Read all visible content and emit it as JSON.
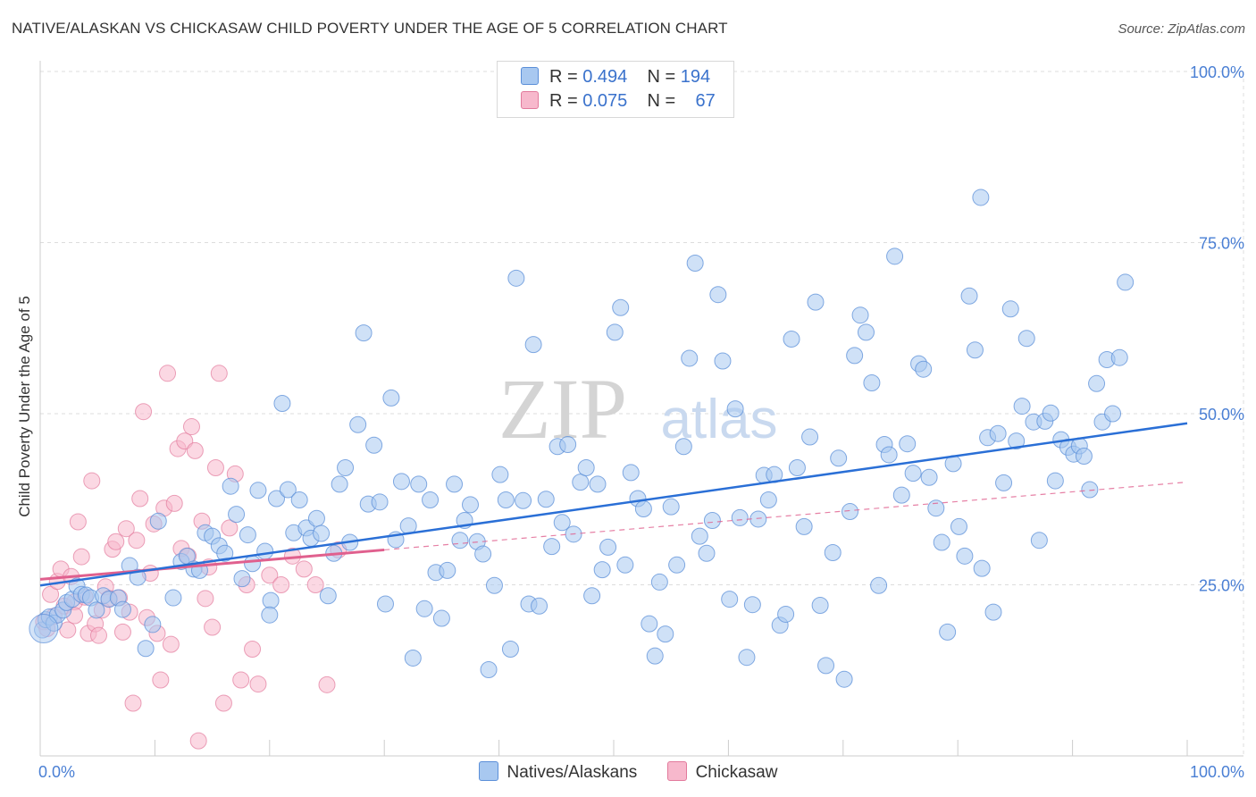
{
  "title": "NATIVE/ALASKAN VS CHICKASAW CHILD POVERTY UNDER THE AGE OF 5 CORRELATION CHART",
  "source": "Source: ZipAtlas.com",
  "watermark": {
    "zip": "ZIP",
    "atlas": "atlas"
  },
  "legend": {
    "rows": [
      {
        "r_label": "R =",
        "r_value": "0.494",
        "n_label": "N =",
        "n_value": "194"
      },
      {
        "r_label": "R =",
        "r_value": "0.075",
        "n_label": "N =",
        "n_value": "67"
      }
    ]
  },
  "bottom_legend": {
    "series1": "Natives/Alaskans",
    "series2": "Chickasaw"
  },
  "colors": {
    "blue_fill": "#a8c8f0",
    "blue_stroke": "#5b8fd8",
    "blue_line": "#2a6fd6",
    "pink_fill": "#f7b8cc",
    "pink_stroke": "#e27a9c",
    "pink_line": "#e0608e",
    "tick_text": "#4a7fd4",
    "grid": "#dddddd"
  },
  "chart_data": {
    "type": "scatter",
    "title": "NATIVE/ALASKAN VS CHICKASAW CHILD POVERTY UNDER THE AGE OF 5 CORRELATION CHART",
    "xlabel": "",
    "ylabel": "Child Poverty Under the Age of 5",
    "xlim": [
      0,
      100
    ],
    "ylim": [
      0,
      100
    ],
    "x_tick_labels": [
      "0.0%",
      "100.0%"
    ],
    "y_ticks": [
      25,
      50,
      75,
      100
    ],
    "y_tick_labels": [
      "25.0%",
      "50.0%",
      "75.0%",
      "100.0%"
    ],
    "grid": true,
    "legend_position": "top-center",
    "series": [
      {
        "name": "Natives/Alaskans",
        "color": "#a8c8f0",
        "R": 0.494,
        "N": 194,
        "trend": {
          "x": [
            0,
            100
          ],
          "y": [
            24.9,
            48.6
          ]
        },
        "points": [
          [
            0.2,
            18.4
          ],
          [
            0.5,
            19.9
          ],
          [
            0.8,
            20.3
          ],
          [
            1.2,
            19.4
          ],
          [
            1.5,
            20.6
          ],
          [
            2.0,
            21.3
          ],
          [
            2.3,
            22.4
          ],
          [
            2.8,
            22.9
          ],
          [
            3.2,
            24.8
          ],
          [
            3.6,
            23.6
          ],
          [
            4.0,
            23.5
          ],
          [
            4.4,
            23.1
          ],
          [
            4.9,
            21.3
          ],
          [
            5.5,
            23.4
          ],
          [
            6.0,
            22.9
          ],
          [
            6.8,
            23.1
          ],
          [
            7.2,
            21.4
          ],
          [
            7.8,
            27.8
          ],
          [
            8.5,
            26.1
          ],
          [
            9.2,
            15.7
          ],
          [
            9.8,
            19.2
          ],
          [
            10.3,
            34.3
          ],
          [
            11.6,
            23.1
          ],
          [
            12.3,
            28.4
          ],
          [
            12.8,
            29.2
          ],
          [
            13.4,
            27.3
          ],
          [
            13.9,
            27.1
          ],
          [
            14.4,
            32.6
          ],
          [
            15.0,
            32.1
          ],
          [
            15.6,
            30.7
          ],
          [
            16.1,
            29.6
          ],
          [
            16.6,
            39.4
          ],
          [
            17.1,
            35.3
          ],
          [
            17.6,
            25.9
          ],
          [
            18.1,
            32.3
          ],
          [
            18.5,
            28.1
          ],
          [
            19.0,
            38.8
          ],
          [
            19.6,
            29.9
          ],
          [
            20.1,
            22.7
          ],
          [
            20.6,
            37.6
          ],
          [
            21.1,
            51.5
          ],
          [
            21.6,
            38.9
          ],
          [
            22.1,
            32.6
          ],
          [
            22.6,
            37.4
          ],
          [
            23.2,
            33.3
          ],
          [
            23.6,
            31.8
          ],
          [
            24.1,
            34.7
          ],
          [
            24.5,
            32.5
          ],
          [
            25.1,
            23.4
          ],
          [
            25.6,
            29.6
          ],
          [
            26.1,
            39.7
          ],
          [
            26.6,
            42.1
          ],
          [
            27.0,
            31.2
          ],
          [
            27.7,
            48.4
          ],
          [
            28.2,
            61.8
          ],
          [
            28.6,
            36.8
          ],
          [
            29.1,
            45.4
          ],
          [
            29.6,
            37.1
          ],
          [
            30.1,
            22.2
          ],
          [
            30.6,
            52.3
          ],
          [
            31.0,
            31.6
          ],
          [
            31.5,
            40.1
          ],
          [
            32.1,
            33.6
          ],
          [
            32.5,
            14.3
          ],
          [
            33.0,
            39.7
          ],
          [
            33.5,
            21.5
          ],
          [
            34.0,
            37.4
          ],
          [
            34.5,
            26.8
          ],
          [
            35.0,
            20.1
          ],
          [
            35.5,
            27.1
          ],
          [
            36.1,
            39.7
          ],
          [
            36.6,
            31.5
          ],
          [
            37.0,
            34.4
          ],
          [
            37.5,
            36.7
          ],
          [
            38.1,
            31.3
          ],
          [
            38.6,
            29.5
          ],
          [
            39.1,
            12.6
          ],
          [
            39.6,
            24.9
          ],
          [
            40.1,
            41.1
          ],
          [
            40.6,
            37.4
          ],
          [
            41.0,
            15.6
          ],
          [
            41.5,
            69.8
          ],
          [
            42.1,
            37.3
          ],
          [
            42.6,
            22.2
          ],
          [
            43.0,
            60.1
          ],
          [
            43.5,
            21.9
          ],
          [
            44.1,
            37.5
          ],
          [
            44.6,
            30.6
          ],
          [
            45.1,
            45.2
          ],
          [
            45.5,
            34.1
          ],
          [
            46.0,
            45.5
          ],
          [
            46.5,
            32.4
          ],
          [
            47.1,
            40.0
          ],
          [
            47.6,
            42.1
          ],
          [
            48.1,
            23.4
          ],
          [
            48.6,
            39.7
          ],
          [
            49.0,
            27.2
          ],
          [
            49.5,
            30.5
          ],
          [
            50.1,
            61.9
          ],
          [
            50.6,
            65.5
          ],
          [
            51.0,
            27.9
          ],
          [
            51.5,
            41.4
          ],
          [
            52.1,
            37.6
          ],
          [
            52.6,
            36.1
          ],
          [
            53.1,
            19.3
          ],
          [
            53.6,
            14.6
          ],
          [
            54.0,
            25.4
          ],
          [
            54.5,
            17.8
          ],
          [
            55.0,
            36.4
          ],
          [
            55.5,
            27.9
          ],
          [
            56.1,
            45.2
          ],
          [
            56.6,
            58.1
          ],
          [
            57.1,
            72.0
          ],
          [
            57.5,
            32.1
          ],
          [
            58.1,
            29.6
          ],
          [
            58.6,
            34.4
          ],
          [
            59.1,
            67.4
          ],
          [
            59.5,
            57.7
          ],
          [
            60.1,
            22.9
          ],
          [
            60.6,
            50.7
          ],
          [
            61.0,
            34.8
          ],
          [
            61.6,
            14.4
          ],
          [
            62.1,
            22.1
          ],
          [
            62.6,
            34.6
          ],
          [
            63.1,
            41.0
          ],
          [
            63.5,
            37.4
          ],
          [
            64.0,
            41.1
          ],
          [
            64.5,
            19.1
          ],
          [
            65.0,
            20.7
          ],
          [
            65.5,
            60.9
          ],
          [
            66.0,
            42.1
          ],
          [
            66.6,
            33.5
          ],
          [
            67.1,
            46.6
          ],
          [
            67.6,
            66.3
          ],
          [
            68.0,
            22.0
          ],
          [
            68.5,
            13.2
          ],
          [
            69.1,
            29.7
          ],
          [
            69.6,
            43.5
          ],
          [
            70.1,
            11.2
          ],
          [
            70.6,
            35.7
          ],
          [
            71.0,
            58.5
          ],
          [
            71.5,
            64.4
          ],
          [
            72.0,
            61.9
          ],
          [
            72.5,
            54.5
          ],
          [
            73.1,
            24.9
          ],
          [
            73.6,
            45.5
          ],
          [
            74.0,
            44.0
          ],
          [
            74.5,
            73.0
          ],
          [
            75.1,
            38.1
          ],
          [
            75.6,
            45.6
          ],
          [
            76.1,
            41.3
          ],
          [
            76.6,
            57.3
          ],
          [
            77.0,
            56.5
          ],
          [
            77.5,
            40.7
          ],
          [
            78.1,
            36.2
          ],
          [
            78.6,
            31.2
          ],
          [
            79.1,
            18.1
          ],
          [
            79.6,
            42.7
          ],
          [
            80.1,
            33.5
          ],
          [
            80.6,
            29.2
          ],
          [
            81.0,
            67.2
          ],
          [
            81.5,
            59.3
          ],
          [
            82.1,
            27.4
          ],
          [
            82.6,
            46.5
          ],
          [
            83.1,
            21.0
          ],
          [
            83.5,
            47.1
          ],
          [
            84.0,
            39.9
          ],
          [
            84.6,
            65.3
          ],
          [
            85.1,
            46.0
          ],
          [
            85.6,
            51.1
          ],
          [
            86.0,
            61.0
          ],
          [
            86.6,
            48.8
          ],
          [
            87.1,
            31.5
          ],
          [
            87.6,
            48.9
          ],
          [
            88.1,
            50.1
          ],
          [
            88.5,
            40.2
          ],
          [
            89.0,
            46.2
          ],
          [
            89.6,
            45.1
          ],
          [
            90.1,
            44.1
          ],
          [
            90.6,
            45.3
          ],
          [
            91.0,
            43.8
          ],
          [
            91.5,
            38.9
          ],
          [
            92.1,
            54.4
          ],
          [
            92.6,
            48.8
          ],
          [
            93.0,
            57.9
          ],
          [
            93.5,
            50.0
          ],
          [
            94.1,
            58.2
          ],
          [
            94.6,
            69.2
          ],
          [
            82.0,
            81.6
          ],
          [
            20.0,
            20.6
          ]
        ]
      },
      {
        "name": "Chickasaw",
        "color": "#f7b8cc",
        "R": 0.075,
        "N": 67,
        "trend": {
          "x": [
            0,
            30
          ],
          "y": [
            25.8,
            30.1
          ]
        },
        "trend_dashed": {
          "x": [
            30,
            100
          ],
          "y": [
            30.1,
            40.0
          ]
        },
        "points": [
          [
            0.3,
            19.6
          ],
          [
            0.6,
            18.6
          ],
          [
            0.9,
            23.6
          ],
          [
            1.2,
            20.4
          ],
          [
            1.5,
            25.5
          ],
          [
            1.8,
            27.3
          ],
          [
            2.1,
            21.9
          ],
          [
            2.4,
            18.4
          ],
          [
            2.7,
            26.2
          ],
          [
            3.0,
            22.5
          ],
          [
            3.3,
            34.2
          ],
          [
            3.6,
            29.1
          ],
          [
            3.9,
            23.2
          ],
          [
            4.2,
            17.9
          ],
          [
            4.5,
            40.2
          ],
          [
            4.8,
            19.3
          ],
          [
            5.1,
            17.6
          ],
          [
            5.4,
            21.3
          ],
          [
            5.7,
            24.7
          ],
          [
            6.0,
            23.0
          ],
          [
            6.3,
            30.2
          ],
          [
            6.6,
            31.3
          ],
          [
            6.9,
            23.1
          ],
          [
            7.2,
            18.1
          ],
          [
            7.5,
            33.2
          ],
          [
            7.8,
            21.0
          ],
          [
            8.1,
            7.7
          ],
          [
            8.4,
            31.5
          ],
          [
            8.7,
            37.6
          ],
          [
            9.0,
            50.3
          ],
          [
            9.3,
            20.2
          ],
          [
            9.6,
            26.7
          ],
          [
            9.9,
            33.9
          ],
          [
            10.2,
            17.9
          ],
          [
            10.5,
            11.1
          ],
          [
            10.8,
            36.2
          ],
          [
            11.1,
            55.9
          ],
          [
            11.4,
            16.3
          ],
          [
            11.7,
            36.9
          ],
          [
            12.0,
            44.9
          ],
          [
            12.3,
            30.3
          ],
          [
            12.6,
            46.0
          ],
          [
            12.9,
            29.2
          ],
          [
            13.2,
            48.1
          ],
          [
            13.5,
            44.6
          ],
          [
            13.8,
            2.2
          ],
          [
            14.1,
            34.3
          ],
          [
            14.4,
            23.0
          ],
          [
            14.7,
            27.6
          ],
          [
            15.0,
            18.8
          ],
          [
            15.3,
            42.1
          ],
          [
            15.6,
            55.9
          ],
          [
            16.0,
            7.7
          ],
          [
            16.5,
            33.3
          ],
          [
            17.0,
            41.2
          ],
          [
            17.5,
            11.1
          ],
          [
            18.0,
            25.0
          ],
          [
            18.5,
            15.6
          ],
          [
            19.0,
            10.5
          ],
          [
            20.0,
            26.4
          ],
          [
            21.0,
            25.0
          ],
          [
            22.0,
            29.2
          ],
          [
            23.0,
            27.3
          ],
          [
            24.0,
            25.0
          ],
          [
            25.0,
            10.4
          ],
          [
            26.0,
            30.1
          ],
          [
            3.0,
            20.5
          ]
        ]
      }
    ]
  }
}
